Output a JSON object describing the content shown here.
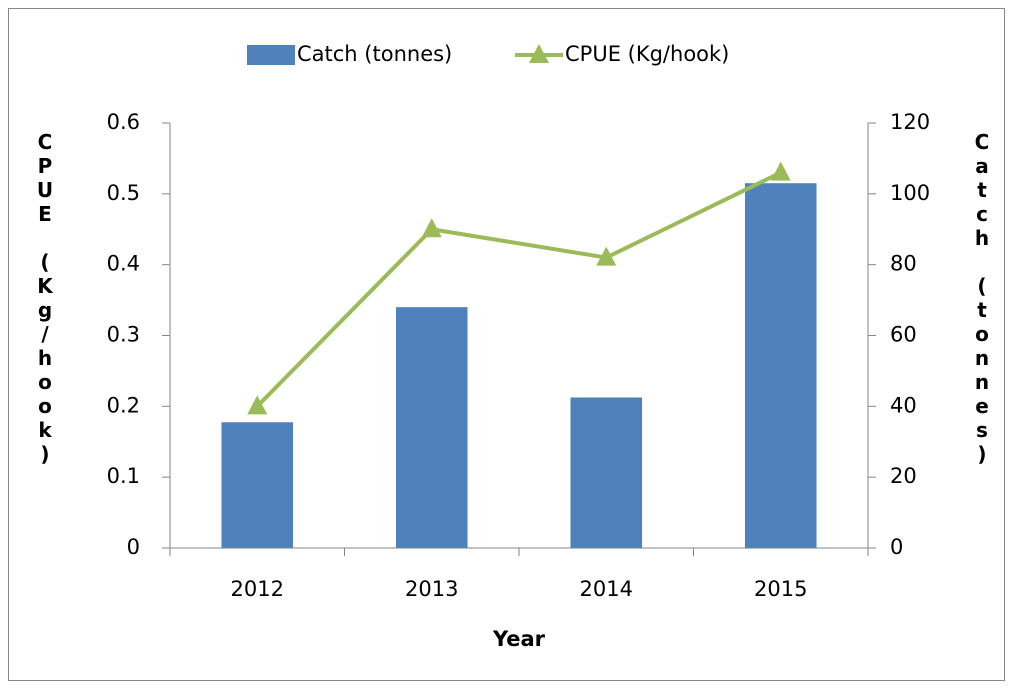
{
  "chart_data": {
    "type": "bar-line",
    "x_label": "Year",
    "y_label": "CPUE (Kg/hook)",
    "y2_label": "Catch (tonnes)",
    "categories": [
      "2012",
      "2013",
      "2014",
      "2015"
    ],
    "series": [
      {
        "name": "Catch (tonnes)",
        "type": "bar",
        "axis": "y2",
        "color": "#4f81bd",
        "values": [
          35.5,
          68,
          42.5,
          103
        ]
      },
      {
        "name": "CPUE (Kg/hook)",
        "type": "line",
        "axis": "y",
        "color": "#9bbb59",
        "values": [
          0.2,
          0.45,
          0.41,
          0.53
        ]
      }
    ],
    "ylim": [
      0,
      0.6
    ],
    "yticks": [
      0,
      0.1,
      0.2,
      0.3,
      0.4,
      0.5,
      0.6
    ],
    "y2lim": [
      0,
      120
    ],
    "y2ticks": [
      0,
      20,
      40,
      60,
      80,
      100,
      120
    ],
    "grid": false,
    "legend": "top"
  }
}
